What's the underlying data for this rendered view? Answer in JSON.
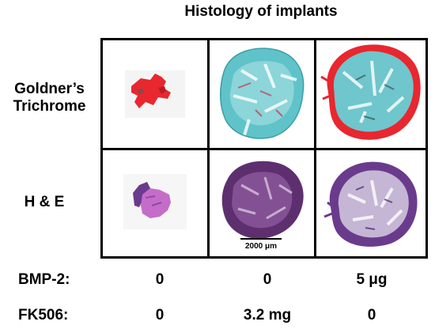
{
  "title": "Histology of implants",
  "rows": [
    {
      "label_line1": "Goldner’s",
      "label_line2": "Trichrome"
    },
    {
      "label_line1": "H & E",
      "label_line2": ""
    }
  ],
  "scale_bar_label": "2000 μm",
  "conditions": [
    {
      "label": "BMP-2:",
      "values": [
        "0",
        "0",
        "5 μg"
      ]
    },
    {
      "label": "FK506:",
      "values": [
        "0",
        "3.2 mg",
        "0"
      ]
    }
  ],
  "colors": {
    "trichrome_red": "#e8272f",
    "trichrome_cyan": "#5fc3c9",
    "he_purple": "#6a3b8c",
    "he_pink": "#c56cc9"
  }
}
